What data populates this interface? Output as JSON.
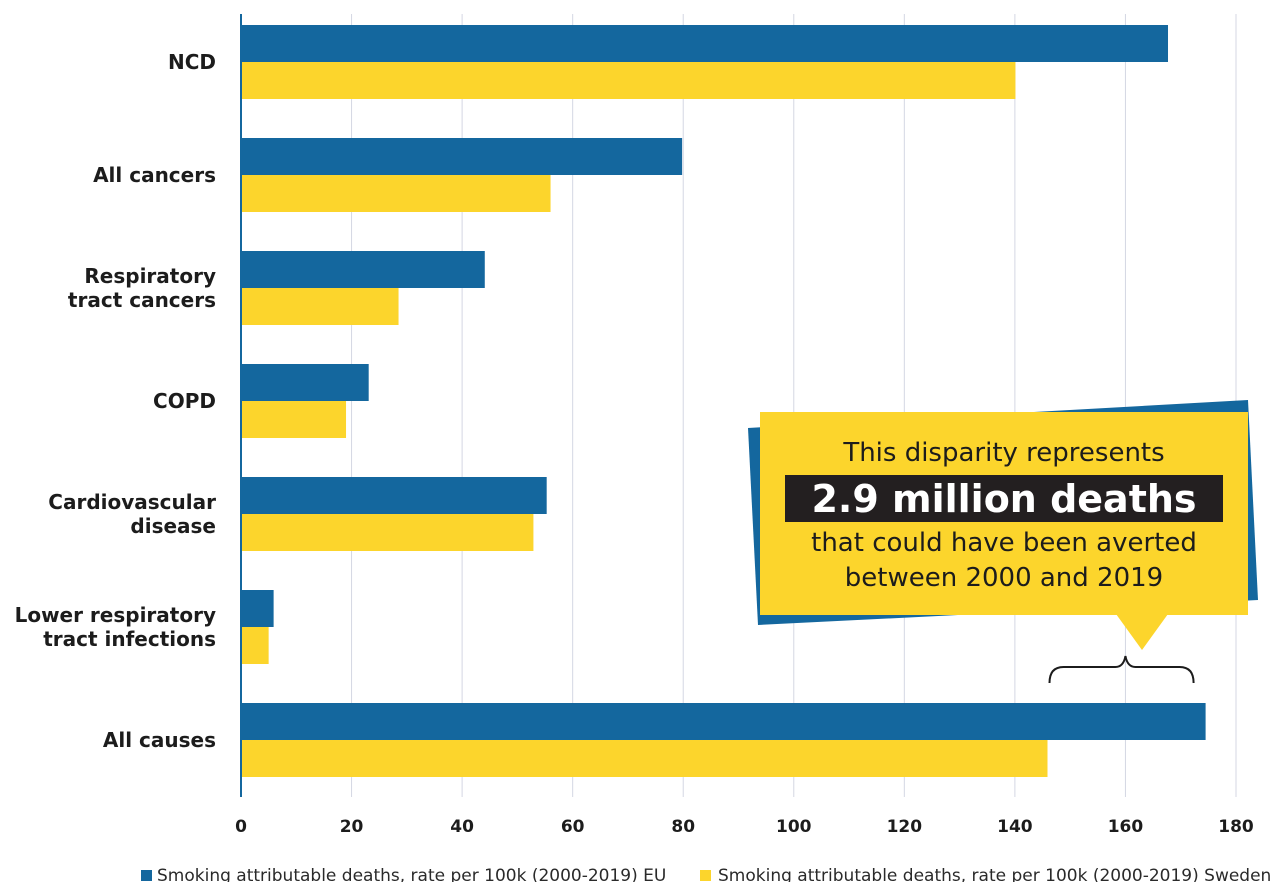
{
  "chart_data": {
    "type": "bar",
    "orientation": "horizontal",
    "categories": [
      "NCD",
      "All cancers",
      "Respiratory tract cancers",
      "COPD",
      "Cardiovascular disease",
      "Lower respiratory tract infections",
      "All causes"
    ],
    "category_lines": [
      [
        "NCD"
      ],
      [
        "All cancers"
      ],
      [
        "Respiratory",
        "tract cancers"
      ],
      [
        "COPD"
      ],
      [
        "Cardiovascular",
        "disease"
      ],
      [
        "Lower respiratory",
        "tract infections"
      ],
      [
        "All causes"
      ]
    ],
    "series": [
      {
        "name": "Smoking attributable deaths, rate per 100k (2000-2019) EU",
        "color": "#14679e",
        "values": [
          167.7,
          79.8,
          44.1,
          23.1,
          55.3,
          5.9,
          174.5
        ]
      },
      {
        "name": "Smoking attributable deaths, rate per 100k (2000-2019) Sweden",
        "color": "#fcd52c",
        "values": [
          140.1,
          56.0,
          28.5,
          19.0,
          52.9,
          5.0,
          145.9
        ]
      }
    ],
    "xlim": [
      0,
      180
    ],
    "xticks": [
      0,
      20,
      40,
      60,
      80,
      100,
      120,
      140,
      160,
      180
    ],
    "grid": "vertical",
    "legend_position": "bottom",
    "title": "",
    "xlabel": "",
    "ylabel": ""
  },
  "callout": {
    "line1": "This disparity represents",
    "highlight": "2.9 million deaths",
    "line2": "that could have been averted",
    "line3": "between 2000 and 2019",
    "bracket_from": 145.9,
    "bracket_to": 174.5,
    "pointer_value": 160,
    "colors": {
      "box": "#fcd52c",
      "shadow": "#14679e",
      "highlight_bg": "#231f20"
    }
  }
}
